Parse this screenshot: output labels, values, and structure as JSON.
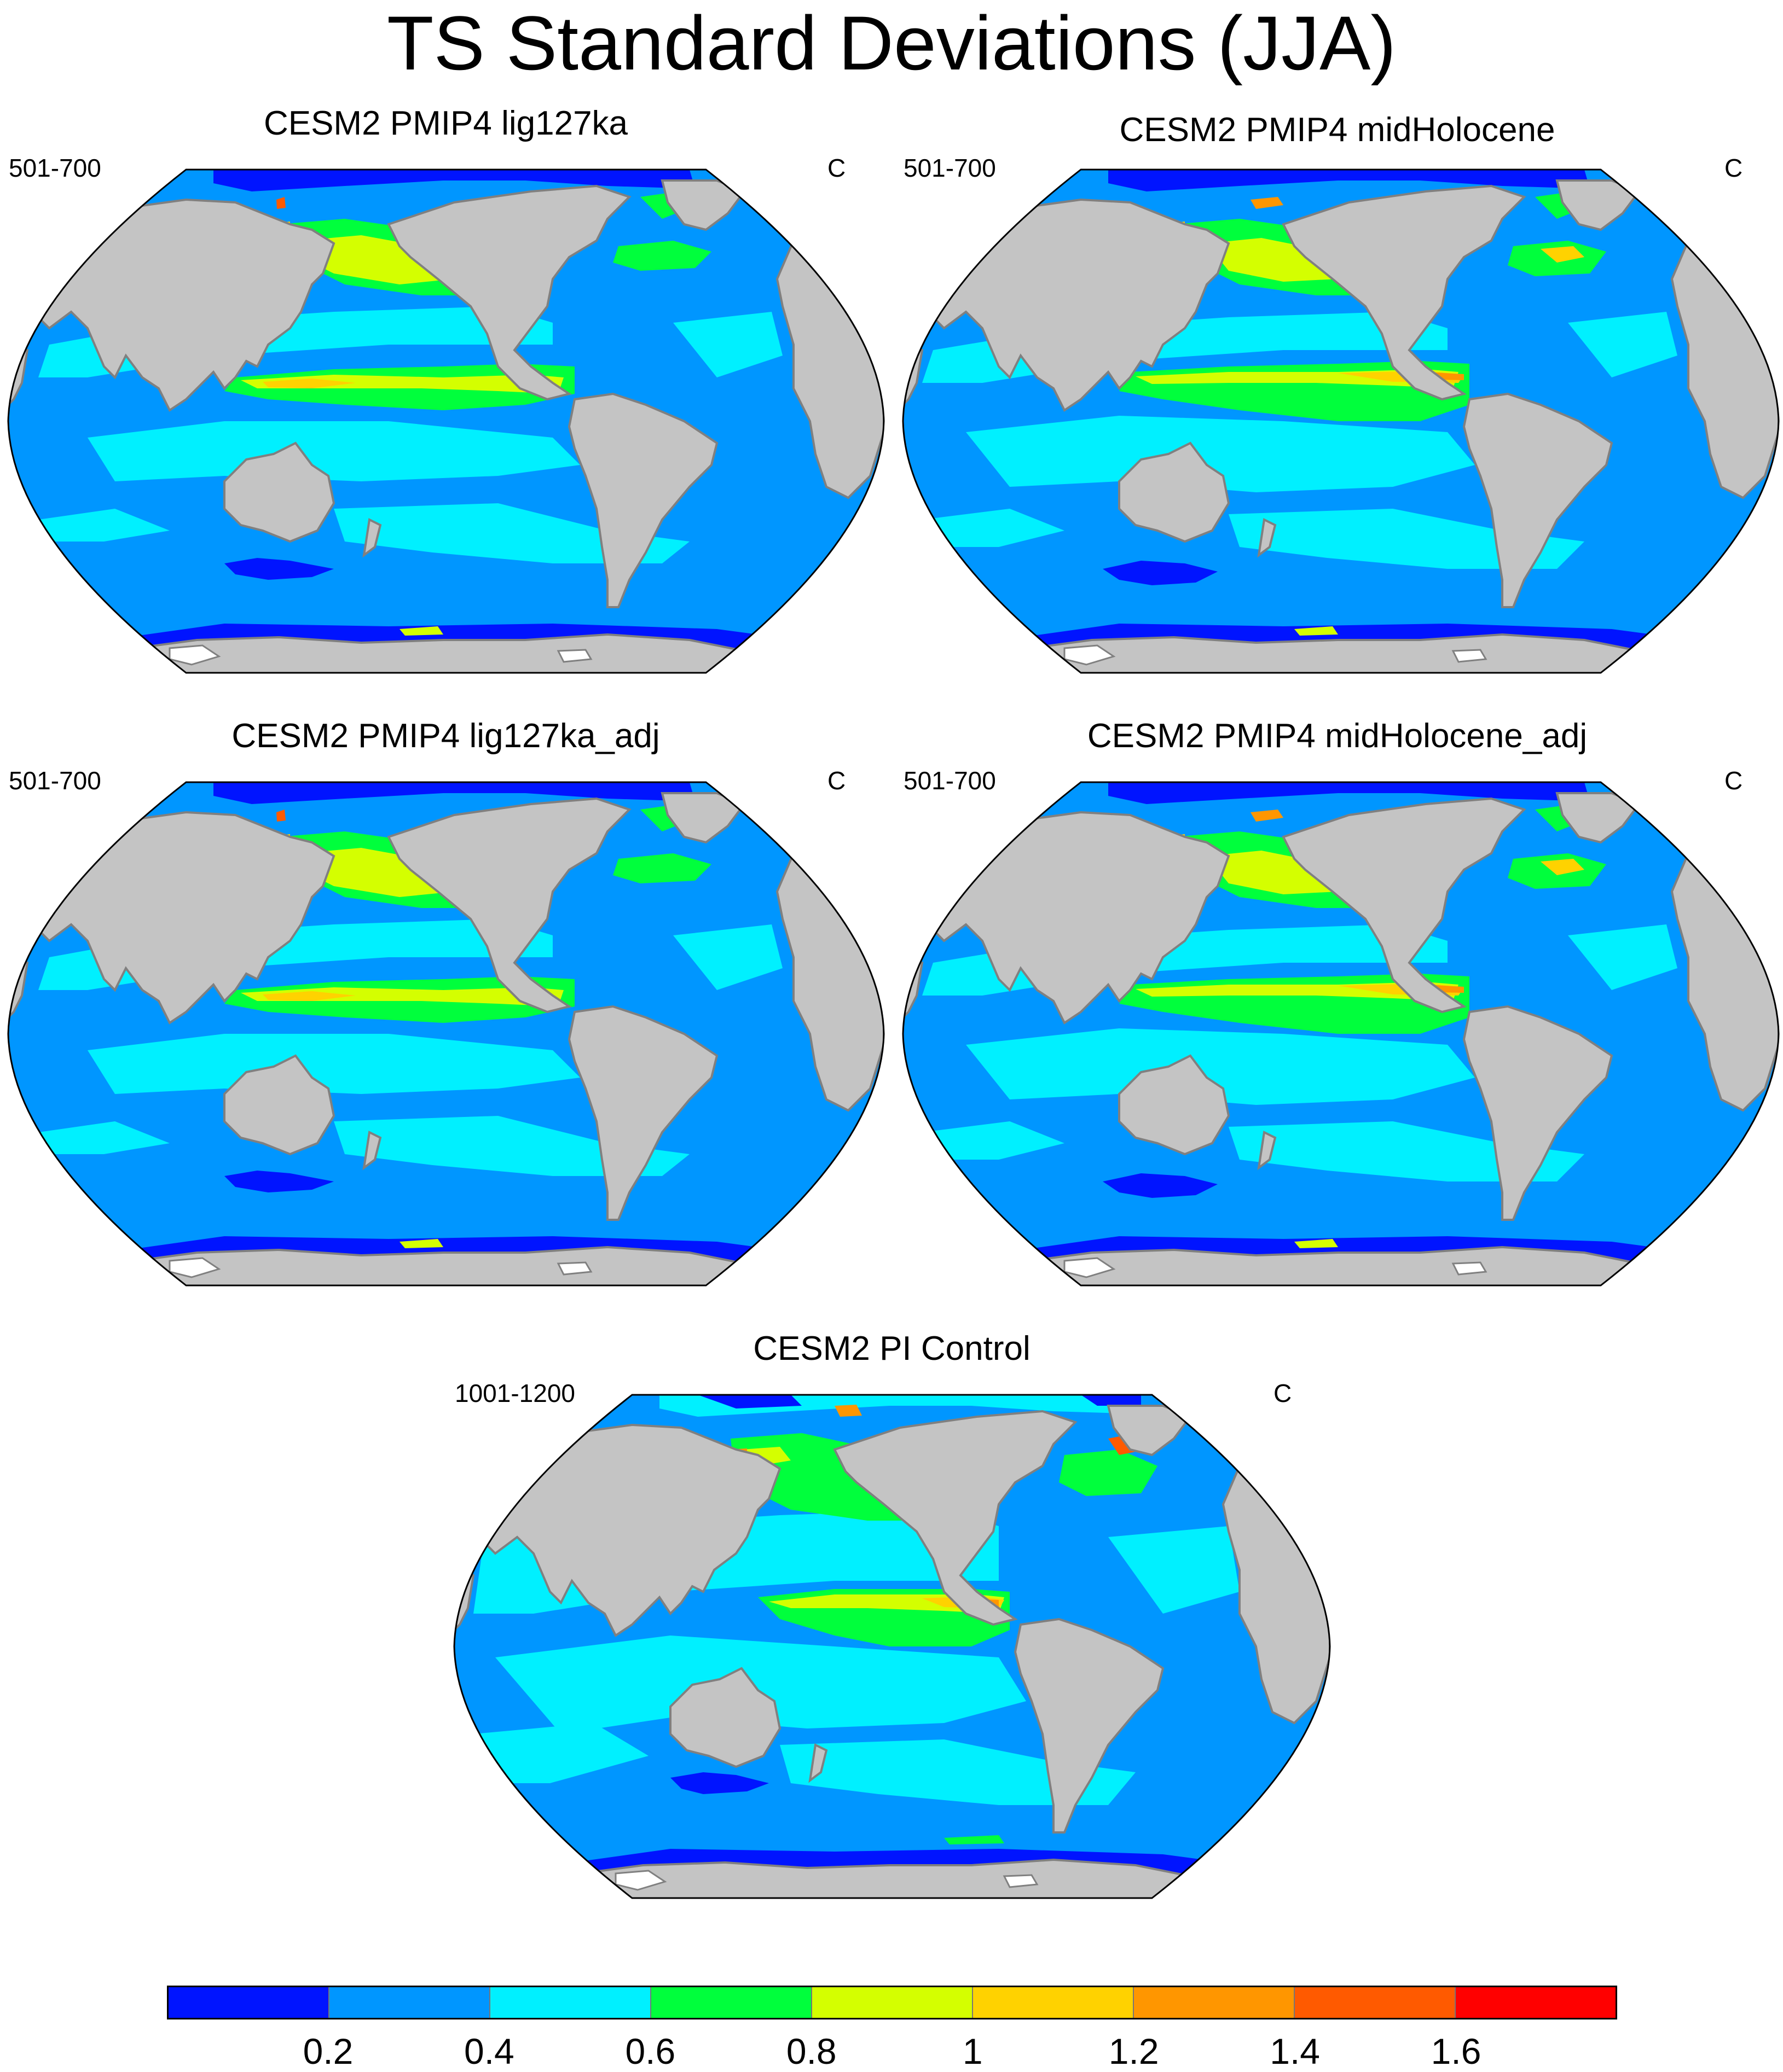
{
  "title": "TS Standard Deviations (JJA)",
  "panels": [
    {
      "title": "CESM2 PMIP4 lig127ka",
      "left": "501-700",
      "right": "C"
    },
    {
      "title": "CESM2 PMIP4 midHolocene",
      "left": "501-700",
      "right": "C"
    },
    {
      "title": "CESM2 PMIP4 lig127ka_adj",
      "left": "501-700",
      "right": "C"
    },
    {
      "title": "CESM2 PMIP4 midHolocene_adj",
      "left": "501-700",
      "right": "C"
    },
    {
      "title": "CESM2 PI Control",
      "left": "1001-1200",
      "right": "C"
    }
  ],
  "colorbar": {
    "colors": [
      "#0014ff",
      "#0096ff",
      "#00f0ff",
      "#00ff3c",
      "#d4ff00",
      "#ffd200",
      "#ff9600",
      "#ff5a00",
      "#ff0000"
    ],
    "ticks": [
      "0.2",
      "0.4",
      "0.6",
      "0.8",
      "1",
      "1.2",
      "1.4",
      "1.6"
    ]
  },
  "colors": {
    "land": "#c4c4c4",
    "coast": "#808080",
    "ice": "#ffffff"
  }
}
